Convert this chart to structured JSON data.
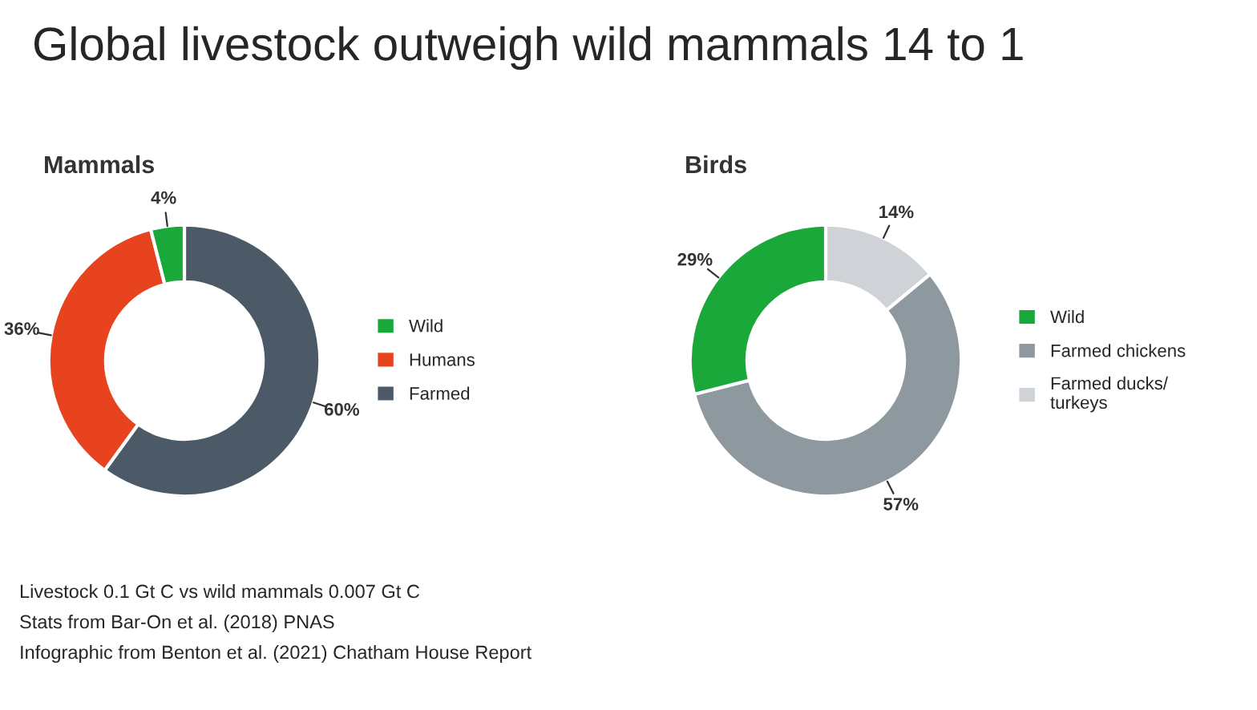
{
  "chart_data": [
    {
      "type": "donut",
      "title": "Global livestock outweigh wild mammals 14 to 1",
      "subtitle": "Mammals",
      "categories": [
        "Wild",
        "Humans",
        "Farmed"
      ],
      "values": [
        4,
        36,
        60
      ],
      "value_labels": [
        "4%",
        "36%",
        "60%"
      ],
      "colors": [
        "#1aa83a",
        "#e8431f",
        "#4b5a66"
      ],
      "legend": "right",
      "annotations": [
        "Livestock 0.1 Gt C vs wild mammals 0.007 Gt C",
        "Stats from Bar-On et al. (2018) PNAS",
        "Infographic from Benton et al. (2021) Chatham House Report"
      ]
    },
    {
      "type": "donut",
      "title": "Birds",
      "categories": [
        "Wild",
        "Farmed chickens",
        "Farmed ducks/\nturkeys"
      ],
      "values": [
        29,
        57,
        14
      ],
      "value_labels": [
        "29%",
        "57%",
        "14%"
      ],
      "colors": [
        "#1aa83a",
        "#8e989f",
        "#cfd3d7"
      ],
      "legend": "right"
    }
  ]
}
